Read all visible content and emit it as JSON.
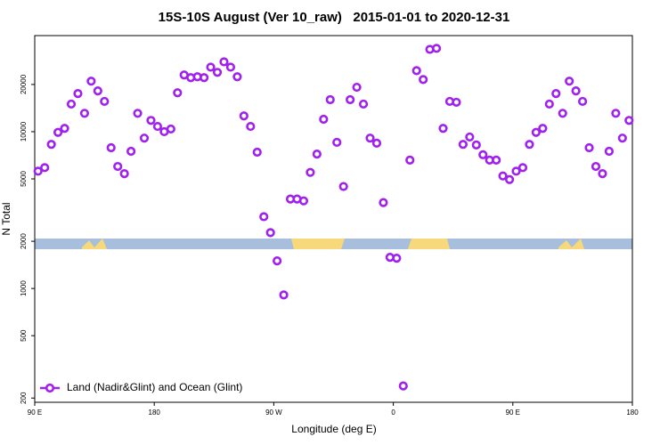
{
  "chart_data": {
    "type": "scatter",
    "title": "15S-10S August (Ver 10_raw)   2015-01-01 to 2020-12-31",
    "x_label": "Longitude (deg E)",
    "y_label": "N Total",
    "log_y": true,
    "legend": "bottom-left",
    "xlim": [
      -270,
      180
    ],
    "xticks": [
      {
        "value": -270,
        "label": "90 E"
      },
      {
        "value": -180,
        "label": "180"
      },
      {
        "value": -90,
        "label": "90 W"
      },
      0,
      {
        "value": 90,
        "label": "90 E"
      },
      180
    ],
    "ylim": [
      188,
      41000
    ],
    "yticks": [
      200,
      500,
      1000,
      2000,
      5000,
      10000,
      20000
    ],
    "x": [
      -267.5,
      -262.5,
      -257.5,
      -252.5,
      -247.5,
      -242.5,
      -237.5,
      -232.5,
      -227.5,
      -222.5,
      -217.5,
      -212.5,
      -207.5,
      -202.5,
      -197.5,
      -192.5,
      -187.5,
      -182.5,
      -177.5,
      -172.5,
      -167.5,
      -162.5,
      -157.5,
      -152.5,
      -147.5,
      -142.5,
      -137.5,
      -132.5,
      -127.5,
      -122.5,
      -117.5,
      -112.5,
      -107.5,
      -102.5,
      -97.5,
      -92.5,
      -87.5,
      -82.5,
      -77.5,
      -72.5,
      -67.5,
      -62.5,
      -57.5,
      -52.5,
      -47.5,
      -42.5,
      -37.5,
      -32.5,
      -27.5,
      -22.5,
      -17.5,
      -12.5,
      -7.5,
      -2.5,
      2.5,
      7.5,
      12.5,
      17.5,
      22.5,
      27.5,
      32.5,
      37.5,
      42.5,
      47.5,
      52.5,
      57.5,
      62.5,
      67.5,
      72.5,
      77.5,
      82.5,
      87.5,
      92.5,
      97.5,
      102.5,
      107.5,
      112.5,
      117.5,
      122.5,
      127.5,
      132.5,
      137.5,
      142.5,
      147.5,
      152.5,
      157.5,
      162.5,
      167.5,
      172.5,
      177.5
    ],
    "series": [
      {
        "name": "Land (Nadir&Glint) and Ocean (Glint)",
        "color": "#a020f0",
        "values": [
          5600,
          5900,
          8300,
          9900,
          10500,
          15000,
          17500,
          13100,
          21000,
          18200,
          15600,
          7900,
          6000,
          5400,
          7500,
          13100,
          9100,
          11800,
          10800,
          10000,
          10400,
          17700,
          23000,
          22100,
          22400,
          22100,
          25800,
          23900,
          27900,
          25800,
          22400,
          12600,
          10800,
          7400,
          2870,
          2270,
          1500,
          910,
          3720,
          3720,
          3620,
          5500,
          7200,
          12000,
          16000,
          8550,
          4470,
          16000,
          19200,
          15000,
          9100,
          8450,
          3530,
          1580,
          1560,
          239,
          6590,
          24500,
          21500,
          33500,
          34000,
          10500,
          15600,
          15400,
          8300,
          9250,
          8230,
          7130,
          6590,
          6590,
          5220,
          4950,
          5600,
          5900,
          8300,
          9900,
          10500,
          15000,
          17500,
          13100,
          21000,
          18200,
          15600,
          7900,
          6000,
          5400,
          7500,
          13100,
          9100,
          11800
        ]
      }
    ]
  }
}
